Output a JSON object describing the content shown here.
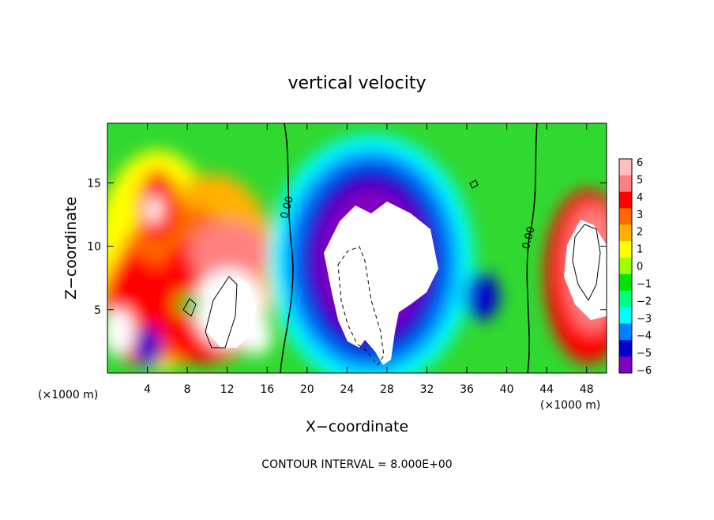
{
  "chart_data": {
    "type": "heatmap",
    "title": "vertical velocity",
    "xlabel": "X−coordinate",
    "ylabel": "Z−coordinate",
    "x_unit_left": "(×1000 m)",
    "x_unit_right": "(×1000 m)",
    "footer": "CONTOUR INTERVAL = 8.000E+00",
    "xlim": [
      0,
      50
    ],
    "ylim": [
      0,
      19.7
    ],
    "x_ticks": [
      4,
      8,
      12,
      16,
      20,
      24,
      28,
      32,
      36,
      40,
      44,
      48
    ],
    "x_tick_labels": [
      "4",
      "8",
      "12",
      "16",
      "20",
      "24",
      "28",
      "32",
      "36",
      "40",
      "44",
      "48"
    ],
    "y_ticks": [
      5,
      10,
      15
    ],
    "y_tick_labels": [
      "5",
      "10",
      "15"
    ],
    "colorbar": {
      "labels": [
        "6",
        "5",
        "4",
        "3",
        "2",
        "1",
        "0",
        "−1",
        "−2",
        "−3",
        "−4",
        "−5",
        "−6"
      ],
      "colors": [
        "#ffc0c0",
        "#ff8080",
        "#ff0000",
        "#ff6a00",
        "#ffb000",
        "#ffff00",
        "#a0ff00",
        "#00e400",
        "#00ff80",
        "#00ffff",
        "#0080ff",
        "#0000cd",
        "#8000c0"
      ]
    },
    "contour_labels": [
      {
        "text": "0.00",
        "x": 18.3,
        "y": 13.0
      },
      {
        "text": "0.00",
        "x": 42.5,
        "y": 10.6
      }
    ]
  }
}
